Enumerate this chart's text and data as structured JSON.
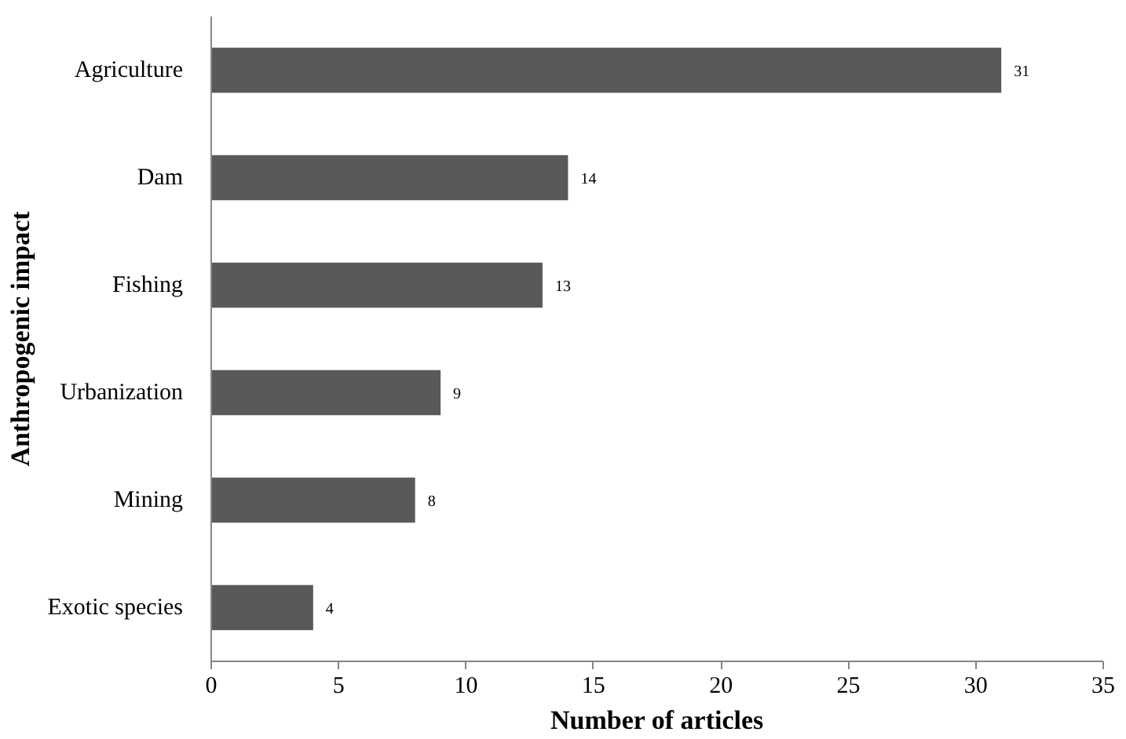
{
  "chart_data": {
    "type": "bar",
    "orientation": "horizontal",
    "xlabel": "Number of articles",
    "ylabel": "Anthropogenic impact",
    "categories": [
      "Agriculture",
      "Dam",
      "Fishing",
      "Urbanization",
      "Mining",
      "Exotic species"
    ],
    "values": [
      31,
      14,
      13,
      9,
      8,
      4
    ],
    "color": "#595959",
    "xlim": [
      0,
      35
    ],
    "xticks": [
      0,
      5,
      10,
      15,
      20,
      25,
      30,
      35
    ],
    "data_labels": true,
    "grid": false
  }
}
